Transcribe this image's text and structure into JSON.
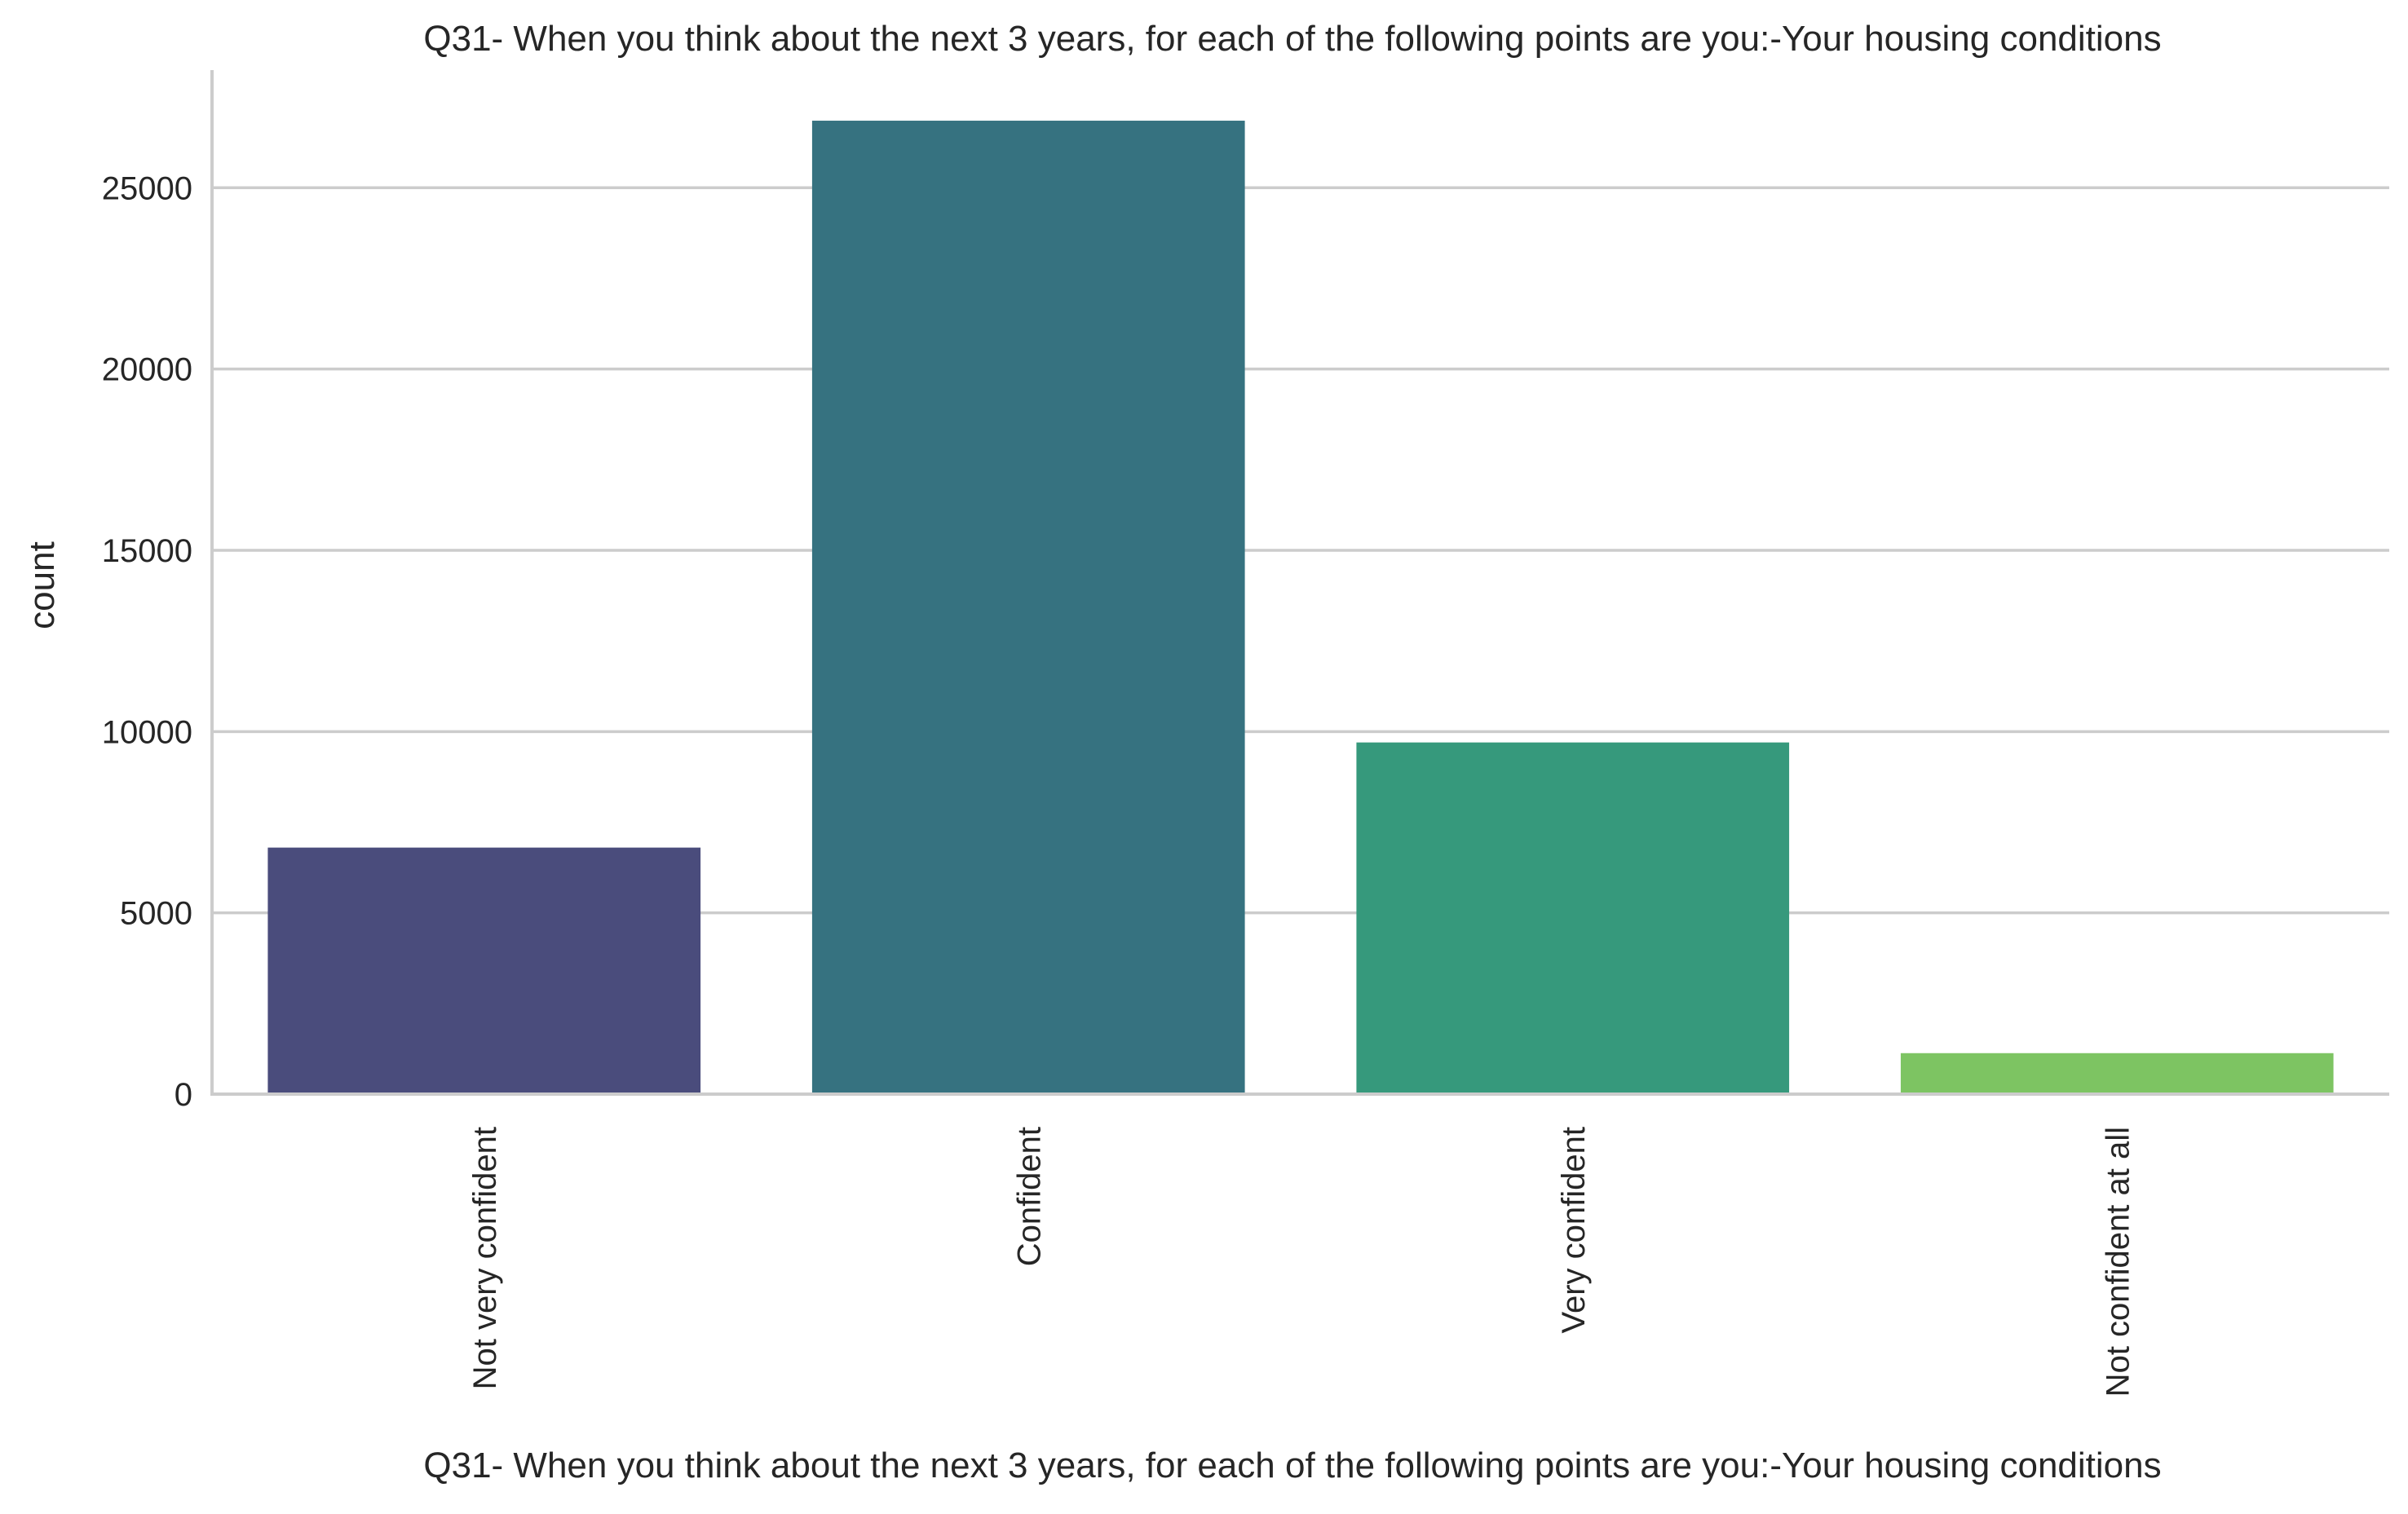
{
  "chart_data": {
    "type": "bar",
    "title": "Q31- When you think about the next 3 years, for each of the following points are you:-Your housing conditions",
    "xlabel": "Q31- When you think about the next 3 years, for each of the following points are you:-Your housing conditions",
    "ylabel": "count",
    "categories": [
      "Not very confident",
      "Confident",
      "Very confident",
      "Not confident at all"
    ],
    "values": [
      6800,
      26850,
      9700,
      1130
    ],
    "colors": [
      "#4a4c7c",
      "#367280",
      "#36997c",
      "#7dc462"
    ],
    "ylim": [
      0,
      28200
    ],
    "yticks": [
      0,
      5000,
      10000,
      15000,
      20000,
      25000
    ],
    "ytick_labels": [
      "0",
      "5000",
      "10000",
      "15000",
      "20000",
      "25000"
    ],
    "grid": "horizontal",
    "xtick_rotation": "vertical"
  }
}
